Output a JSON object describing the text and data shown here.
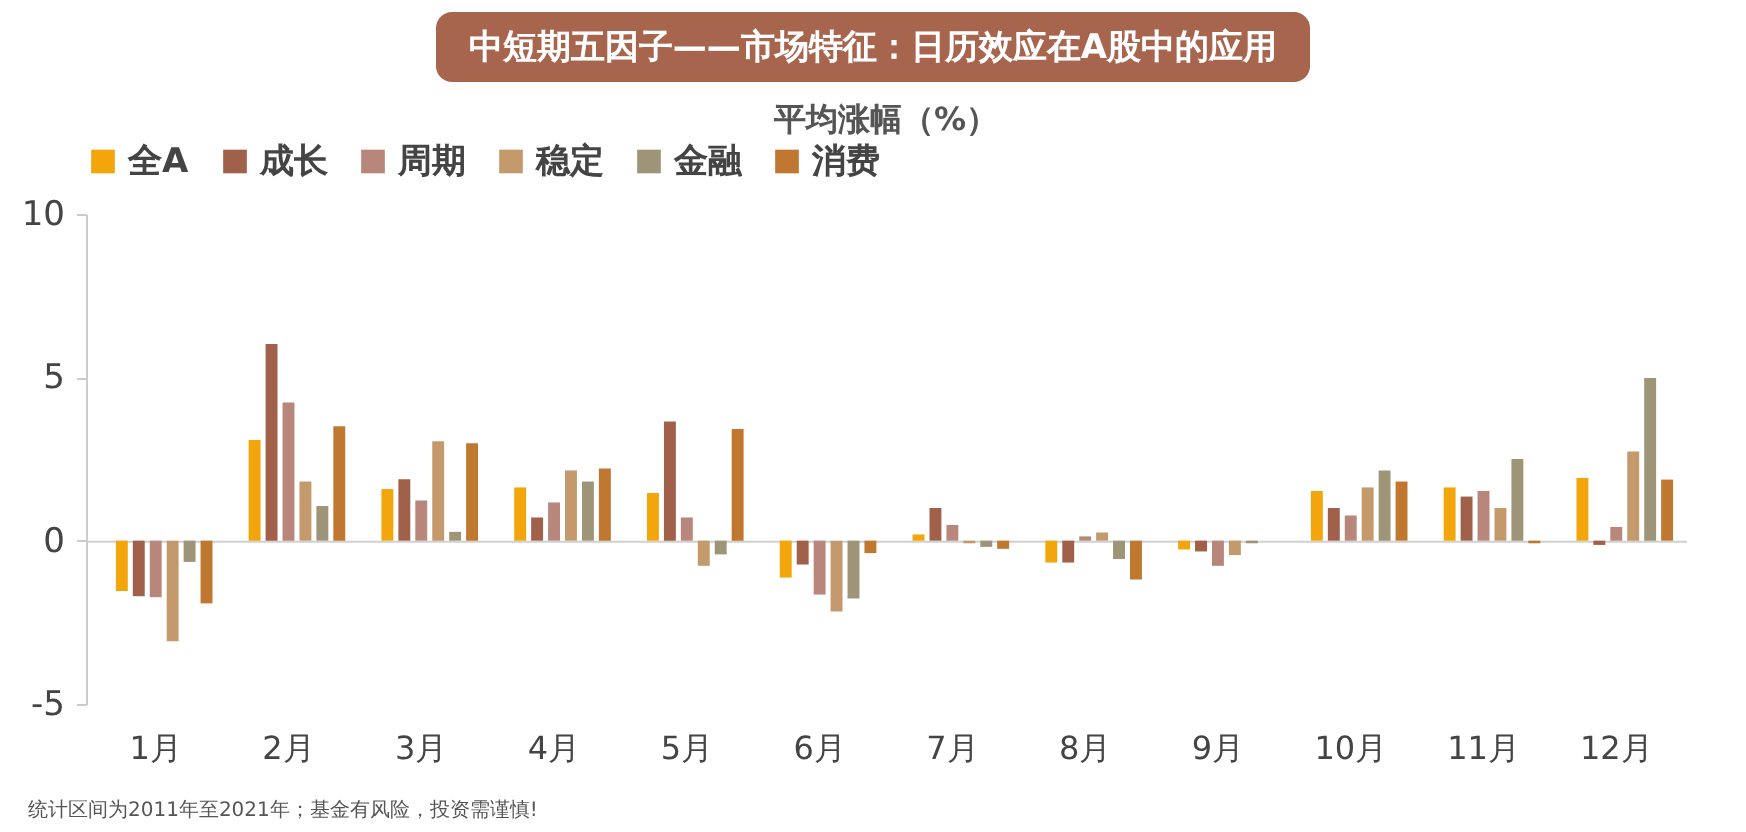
{
  "chart_data": {
    "type": "bar",
    "title": "中短期五因子——市场特征：日历效应在A股中的应用",
    "subtitle": "平均涨幅（%）",
    "categories": [
      "1月",
      "2月",
      "3月",
      "4月",
      "5月",
      "6月",
      "7月",
      "8月",
      "9月",
      "10月",
      "11月",
      "12月"
    ],
    "series": [
      {
        "name": "全A",
        "color": "#f2a60c",
        "values": [
          -1.54,
          3.08,
          1.58,
          1.63,
          1.46,
          -1.13,
          0.19,
          -0.67,
          -0.27,
          1.52,
          1.63,
          1.92
        ]
      },
      {
        "name": "成长",
        "color": "#a0604a",
        "values": [
          -1.7,
          6.02,
          1.88,
          0.71,
          3.65,
          -0.73,
          1.0,
          -0.67,
          -0.33,
          1.0,
          1.35,
          -0.13
        ]
      },
      {
        "name": "周期",
        "color": "#b8867a",
        "values": [
          -1.73,
          4.23,
          1.23,
          1.17,
          0.71,
          -1.65,
          0.48,
          0.13,
          -0.77,
          0.77,
          1.52,
          0.42
        ]
      },
      {
        "name": "稳定",
        "color": "#c49a6c",
        "values": [
          -3.08,
          1.81,
          3.04,
          2.15,
          -0.77,
          -2.17,
          -0.08,
          0.25,
          -0.44,
          1.63,
          1.0,
          2.73
        ]
      },
      {
        "name": "金融",
        "color": "#9e9478",
        "values": [
          -0.65,
          1.06,
          0.27,
          1.81,
          -0.42,
          -1.77,
          -0.19,
          -0.56,
          -0.08,
          2.15,
          2.5,
          4.98
        ]
      },
      {
        "name": "消费",
        "color": "#c07830",
        "values": [
          -1.92,
          3.5,
          2.98,
          2.21,
          3.42,
          -0.38,
          -0.25,
          -1.19,
          0,
          1.81,
          -0.08,
          1.87
        ]
      }
    ],
    "ylim": [
      -5,
      10
    ],
    "yticks": [
      -5,
      0,
      5,
      10
    ],
    "legend": "top",
    "annotations": [
      "统计区间为2011年至2021年；基金有风险，投资需谨慎!"
    ]
  }
}
